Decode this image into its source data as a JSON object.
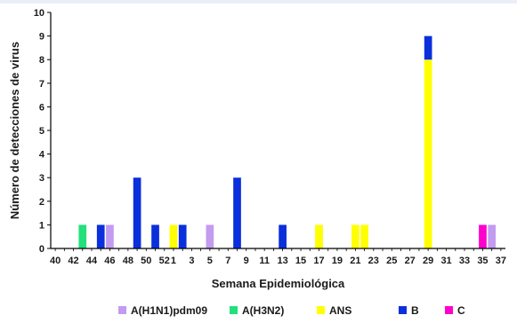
{
  "chart_data": {
    "type": "bar",
    "stacked": true,
    "xlabel": "Semana Epidemiológica",
    "ylabel": "Número de detecciones de virus",
    "ylim": [
      0,
      10
    ],
    "yticks": [
      0,
      1,
      2,
      3,
      4,
      5,
      6,
      7,
      8,
      9,
      10
    ],
    "grid": false,
    "legend_position": "bottom",
    "categories": [
      "40",
      "41",
      "42",
      "43",
      "44",
      "45",
      "46",
      "47",
      "48",
      "49",
      "50",
      "51",
      "52",
      "1",
      "2",
      "3",
      "4",
      "5",
      "6",
      "7",
      "8",
      "9",
      "10",
      "11",
      "12",
      "13",
      "14",
      "15",
      "16",
      "17",
      "18",
      "19",
      "20",
      "21",
      "22",
      "23",
      "24",
      "25",
      "26",
      "27",
      "28",
      "29",
      "30",
      "31",
      "32",
      "33",
      "34",
      "35",
      "36",
      "37"
    ],
    "tick_labels": [
      "40",
      "42",
      "44",
      "46",
      "48",
      "50",
      "52",
      "1",
      "3",
      "5",
      "7",
      "9",
      "11",
      "13",
      "15",
      "17",
      "19",
      "21",
      "23",
      "25",
      "27",
      "29",
      "31",
      "33",
      "35",
      "37"
    ],
    "series": [
      {
        "name": "A(H1N1)pdm09",
        "color": "#c39bf0",
        "values": [
          0,
          0,
          0,
          0,
          0,
          0,
          1,
          0,
          0,
          0,
          0,
          0,
          0,
          0,
          0,
          0,
          0,
          1,
          0,
          0,
          0,
          0,
          0,
          0,
          0,
          0,
          0,
          0,
          0,
          0,
          0,
          0,
          0,
          0,
          0,
          0,
          0,
          0,
          0,
          0,
          0,
          0,
          0,
          0,
          0,
          0,
          0,
          0,
          1,
          0
        ]
      },
      {
        "name": "A(H3N2)",
        "color": "#22e07a",
        "values": [
          0,
          0,
          0,
          1,
          0,
          0,
          0,
          0,
          0,
          0,
          0,
          0,
          0,
          0,
          0,
          0,
          0,
          0,
          0,
          0,
          0,
          0,
          0,
          0,
          0,
          0,
          0,
          0,
          0,
          0,
          0,
          0,
          0,
          0,
          0,
          0,
          0,
          0,
          0,
          0,
          0,
          0,
          0,
          0,
          0,
          0,
          0,
          0,
          0,
          0
        ]
      },
      {
        "name": "ANS",
        "color": "#ffff00",
        "values": [
          0,
          0,
          0,
          0,
          0,
          0,
          0,
          0,
          0,
          0,
          0,
          0,
          0,
          1,
          0,
          0,
          0,
          0,
          0,
          0,
          0,
          0,
          0,
          0,
          0,
          0,
          0,
          0,
          0,
          1,
          0,
          0,
          0,
          1,
          1,
          0,
          0,
          0,
          0,
          0,
          0,
          8,
          0,
          0,
          0,
          0,
          0,
          0,
          0,
          0
        ]
      },
      {
        "name": "B",
        "color": "#0a2fdc",
        "values": [
          0,
          0,
          0,
          0,
          0,
          1,
          0,
          0,
          0,
          3,
          0,
          1,
          0,
          0,
          1,
          0,
          0,
          0,
          0,
          0,
          3,
          0,
          0,
          0,
          0,
          1,
          0,
          0,
          0,
          0,
          0,
          0,
          0,
          0,
          0,
          0,
          0,
          0,
          0,
          0,
          0,
          1,
          0,
          0,
          0,
          0,
          0,
          0,
          0,
          0
        ]
      },
      {
        "name": "C",
        "color": "#ff00cc",
        "values": [
          0,
          0,
          0,
          0,
          0,
          0,
          0,
          0,
          0,
          0,
          0,
          0,
          0,
          0,
          0,
          0,
          0,
          0,
          0,
          0,
          0,
          0,
          0,
          0,
          0,
          0,
          0,
          0,
          0,
          0,
          0,
          0,
          0,
          0,
          0,
          0,
          0,
          0,
          0,
          0,
          0,
          0,
          0,
          0,
          0,
          0,
          0,
          1,
          0,
          0
        ]
      }
    ]
  }
}
